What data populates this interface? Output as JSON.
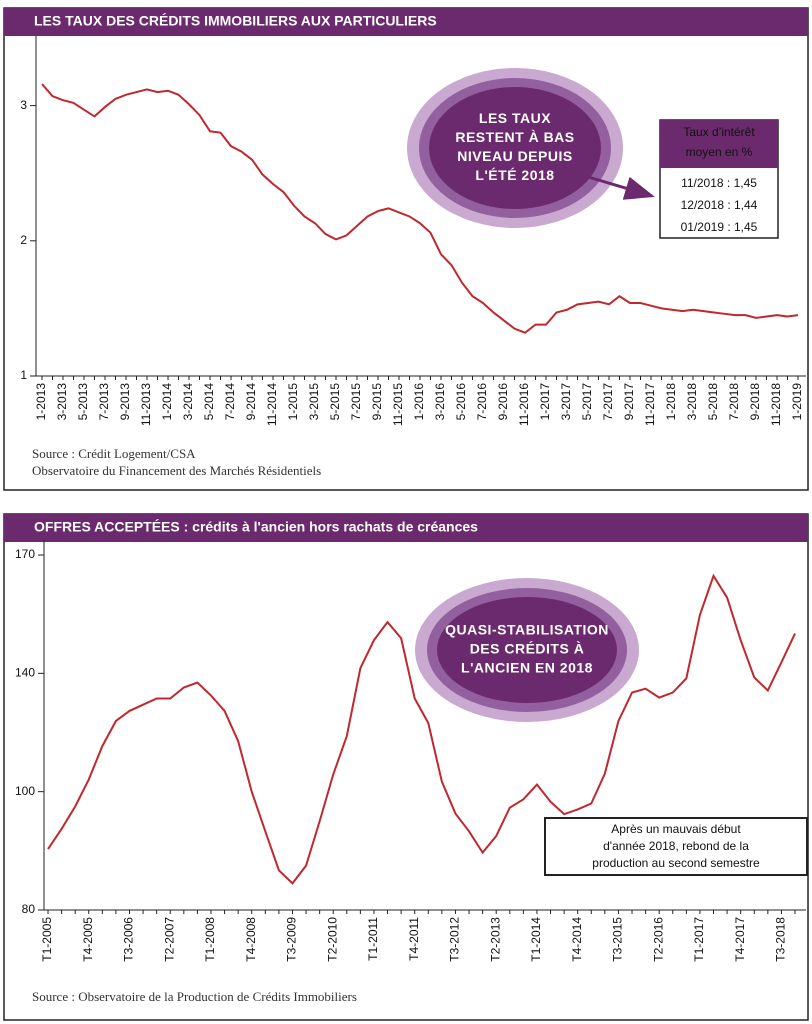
{
  "chart_data": [
    {
      "type": "line",
      "title": "LES TAUX DES CRÉDITS IMMOBILIERS AUX PARTICULIERS",
      "categories": [
        "1-2013",
        null,
        "3-2013",
        null,
        "5-2013",
        null,
        "7-2013",
        null,
        "9-2013",
        null,
        "11-2013",
        null,
        "1-2014",
        null,
        "3-2014",
        null,
        "5-2014",
        null,
        "7-2014",
        null,
        "9-2014",
        null,
        "11-2014",
        null,
        "1-2015",
        null,
        "3-2015",
        null,
        "5-2015",
        null,
        "7-2015",
        null,
        "9-2015",
        null,
        "11-2015",
        null,
        "1-2016",
        null,
        "3-2016",
        null,
        "5-2016",
        null,
        "7-2016",
        null,
        "9-2016",
        null,
        "11-2016",
        null,
        "1-2017",
        null,
        "3-2017",
        null,
        "5-2017",
        null,
        "7-2017",
        null,
        "9-2017",
        null,
        "11-2017",
        null,
        "1-2018",
        null,
        "3-2018",
        null,
        "5-2018",
        null,
        "7-2018",
        null,
        "9-2018",
        null,
        "11-2018",
        null,
        "1-2019"
      ],
      "series": [
        {
          "color": "#c0282d",
          "values": [
            3.16,
            3.07,
            3.04,
            3.02,
            2.97,
            2.92,
            2.99,
            3.05,
            3.08,
            3.1,
            3.12,
            3.1,
            3.11,
            3.08,
            3.01,
            2.93,
            2.81,
            2.8,
            2.7,
            2.66,
            2.6,
            2.49,
            2.42,
            2.36,
            2.26,
            2.18,
            2.13,
            2.05,
            2.01,
            2.04,
            2.11,
            2.18,
            2.22,
            2.24,
            2.21,
            2.18,
            2.13,
            2.06,
            1.9,
            1.82,
            1.69,
            1.59,
            1.54,
            1.47,
            1.41,
            1.35,
            1.32,
            1.38,
            1.38,
            1.47,
            1.49,
            1.53,
            1.54,
            1.55,
            1.53,
            1.59,
            1.54,
            1.54,
            1.52,
            1.5,
            1.49,
            1.48,
            1.49,
            1.48,
            1.47,
            1.46,
            1.45,
            1.45,
            1.43,
            1.44,
            1.45,
            1.44,
            1.45
          ]
        }
      ],
      "ylim": [
        1,
        3.5
      ],
      "yticks": [
        1,
        2,
        3
      ],
      "y_scale": "linear",
      "annotation": [
        "LES TAUX",
        "RESTENT À BAS",
        "NIVEAU DEPUIS",
        "L'ÉTÉ 2018"
      ],
      "info_box": {
        "title": [
          "Taux d’intérêt",
          "moyen en %"
        ],
        "lines": [
          "11/2018 : 1,45",
          "12/2018 : 1,44",
          "01/2019 : 1,45"
        ]
      },
      "source": [
        "Source : Crédit Logement/CSA",
        "Observatoire du Financement des Marchés Résidentiels"
      ]
    },
    {
      "type": "line",
      "title": "OFFRES ACCEPTÉES : crédits à l'ancien hors rachats de créances",
      "categories": [
        "T1-2005",
        null,
        null,
        "T4-2005",
        null,
        null,
        "T3-2006",
        null,
        null,
        "T2-2007",
        null,
        null,
        "T1-2008",
        null,
        null,
        "T4-2008",
        null,
        null,
        "T3-2009",
        null,
        null,
        "T2-2010",
        null,
        null,
        "T1-2011",
        null,
        null,
        "T4-2011",
        null,
        null,
        "T3-2012",
        null,
        null,
        "T2-2013",
        null,
        null,
        "T1-2014",
        null,
        null,
        "T4-2014",
        null,
        null,
        "T3-2015",
        null,
        null,
        "T2-2016",
        null,
        null,
        "T1-2017",
        null,
        null,
        "T4-2017",
        null,
        null,
        "T3-2018",
        null
      ],
      "series": [
        {
          "color": "#c0282d",
          "values": [
            90.3,
            93.7,
            97.5,
            104.1,
            115.4,
            123.9,
            127.3,
            129.4,
            131.5,
            131.5,
            135.2,
            136.9,
            132.5,
            127.3,
            117.1,
            100,
            93.3,
            86.7,
            84.5,
            87.5,
            95,
            105.8,
            118.8,
            141.3,
            148.4,
            153,
            148.9,
            131.5,
            123.2,
            103.4,
            96.3,
            93.3,
            89.7,
            92.5,
            97.3,
            98.7,
            102.4,
            98.3,
            96.2,
            97.0,
            98,
            106.1,
            123.9,
            133.5,
            134.8,
            131.8,
            133.5,
            138.3,
            154.8,
            164.7,
            159.2,
            148.4,
            138.6,
            134.2,
            142.8,
            150.1
          ]
        }
      ],
      "ylim": [
        80,
        170
      ],
      "yticks": [
        80,
        100,
        140,
        170
      ],
      "y_scale": "tick-spaced",
      "annotation": [
        "QUASI-STABILISATION",
        "DES CRÉDITS À",
        "L'ANCIEN EN 2018"
      ],
      "note_box": [
        "Après un mauvais début",
        "d'année 2018, rebond de la",
        "production au second semestre"
      ],
      "source": [
        "Source : Observatoire de la Production de Crédits Immobiliers"
      ]
    }
  ]
}
